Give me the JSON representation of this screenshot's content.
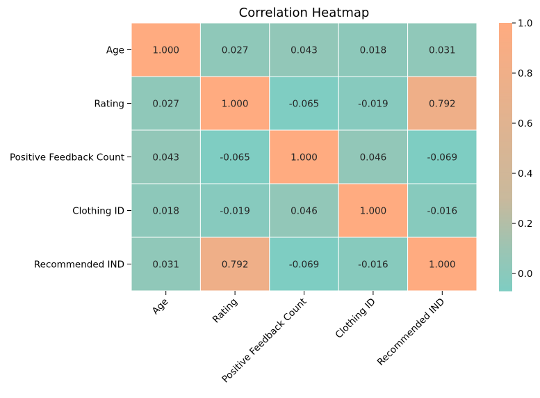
{
  "chart_data": {
    "type": "heatmap",
    "title": "Correlation Heatmap",
    "xlabel": "",
    "ylabel": "",
    "categories_x": [
      "Age",
      "Rating",
      "Positive Feedback Count",
      "Clothing ID",
      "Recommended IND"
    ],
    "categories_y": [
      "Age",
      "Rating",
      "Positive Feedback Count",
      "Clothing ID",
      "Recommended IND"
    ],
    "values": [
      [
        1.0,
        0.027,
        0.043,
        0.018,
        0.031
      ],
      [
        0.027,
        1.0,
        -0.065,
        -0.019,
        0.792
      ],
      [
        0.043,
        -0.065,
        1.0,
        0.046,
        -0.069
      ],
      [
        0.018,
        -0.019,
        0.046,
        1.0,
        -0.016
      ],
      [
        0.031,
        0.792,
        -0.069,
        -0.016,
        1.0
      ]
    ],
    "value_format": "3 decimals",
    "colorbar": {
      "vmin": -0.069,
      "vmax": 1.0,
      "ticks": [
        1.0,
        0.8,
        0.6,
        0.4,
        0.2,
        0.0
      ],
      "tick_labels": [
        "1.0",
        "0.8",
        "0.6",
        "0.4",
        "0.2",
        "0.0"
      ],
      "colors": [
        "#7ecdc2",
        "#9cc4b3",
        "#c9b99c",
        "#ffab80"
      ],
      "color_stops": [
        -0.069,
        0.1,
        0.3,
        1.0
      ]
    },
    "cell_text_color": "#262626",
    "cell_border_color": "#ffffff"
  }
}
